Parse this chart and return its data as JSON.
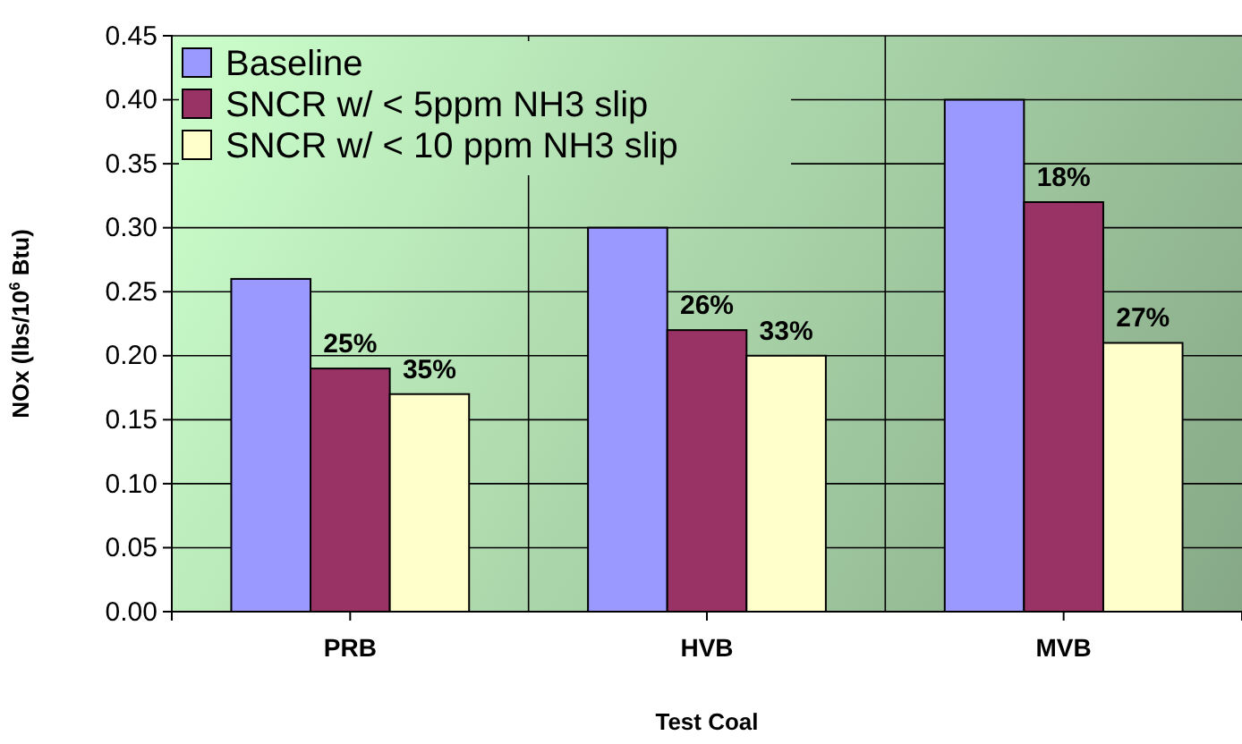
{
  "chart_data": {
    "type": "bar",
    "xlabel": "Test Coal",
    "ylabel": "NOx (lbs/10$^{6}$ Btu)",
    "categories": [
      "PRB",
      "HVB",
      "MVB"
    ],
    "series": [
      {
        "name": "Baseline",
        "color": "#9999ff",
        "values": [
          0.26,
          0.3,
          0.4
        ]
      },
      {
        "name": "SNCR w/ < 5ppm NH3 slip",
        "color": "#993366",
        "values": [
          0.19,
          0.22,
          0.32
        ]
      },
      {
        "name": "SNCR w/ < 10 ppm NH3 slip",
        "color": "#ffffcc",
        "values": [
          0.17,
          0.2,
          0.21
        ]
      }
    ],
    "annotations": [
      {
        "text": "25%",
        "x": "PRB",
        "y": 0.19
      },
      "35%",
      {
        "text": "26%",
        "x": "HVB",
        "y": 0.22
      },
      "33%",
      {
        "text": "18%",
        "x": "MVB",
        "y": 0.32
      },
      "27%"
    ],
    "ylim": [
      0,
      0.45
    ],
    "yticks": [
      {
        "value": 0,
        "label": "0.00"
      },
      {
        "value": 0.05,
        "label": "0.05"
      },
      {
        "value": 0.1,
        "label": "0.10"
      },
      {
        "value": 0.15,
        "label": "0.15"
      },
      {
        "value": 0.2,
        "label": "0.20"
      },
      {
        "value": 0.25,
        "label": "0.25"
      },
      {
        "value": 0.3,
        "label": "0.30"
      },
      {
        "value": 0.35,
        "label": "0.35"
      },
      {
        "value": 0.4,
        "label": "0.40"
      },
      {
        "value": 0.45,
        "label": "0.45"
      }
    ],
    "grid": true,
    "legend": "top left"
  }
}
